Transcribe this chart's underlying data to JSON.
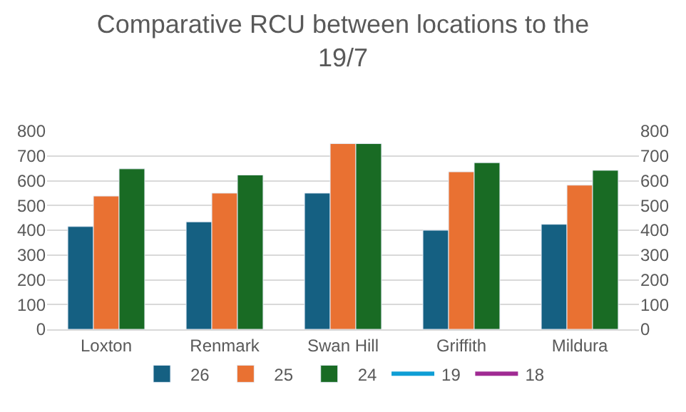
{
  "chart_data": {
    "type": "bar",
    "title": "Comparative RCU between locations to the 19/7",
    "categories": [
      "Loxton",
      "Renmark",
      "Swan Hill",
      "Griffith",
      "Mildura"
    ],
    "series": [
      {
        "name": "26",
        "color": "#156082",
        "values": [
          415,
          434,
          550,
          400,
          424
        ]
      },
      {
        "name": "25",
        "color": "#e97132",
        "values": [
          538,
          550,
          750,
          636,
          582
        ]
      },
      {
        "name": "24",
        "color": "#196b24",
        "values": [
          648,
          623,
          750,
          673,
          642
        ]
      },
      {
        "name": "19",
        "color": "#0f9ed5",
        "type": "line",
        "axis": "y2",
        "values": [
          null,
          null,
          null,
          null,
          null
        ]
      },
      {
        "name": "18",
        "color": "#a02b93",
        "type": "line",
        "axis": "y2",
        "values": [
          null,
          null,
          null,
          null,
          null
        ]
      }
    ],
    "ylim": [
      0,
      800
    ],
    "yticks": [
      0,
      100,
      200,
      300,
      400,
      500,
      600,
      700,
      800
    ],
    "y2lim": [
      0,
      800
    ],
    "y2ticks": [
      0,
      100,
      200,
      300,
      400,
      500,
      600,
      700,
      800
    ],
    "grid": "y",
    "legend": "bottom"
  }
}
